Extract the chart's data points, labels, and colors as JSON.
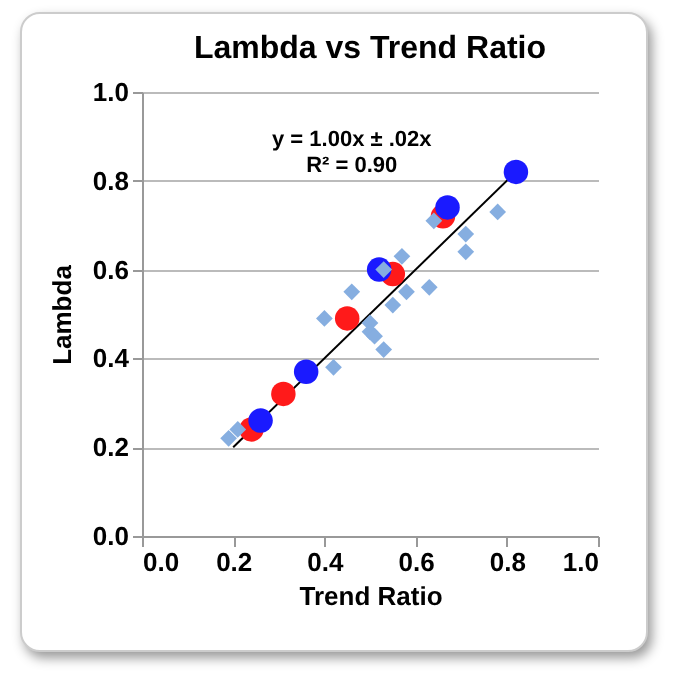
{
  "chart_data": {
    "type": "scatter",
    "title": "Lambda vs Trend Ratio",
    "xlabel": "Trend Ratio",
    "ylabel": "Lambda",
    "annotations": [
      "y = 1.00x ± .02x",
      "R² = 0.90"
    ],
    "xlim": [
      0,
      1
    ],
    "ylim": [
      0,
      1
    ],
    "xticks": [
      {
        "value": 0,
        "label": "0.0"
      },
      {
        "value": 0.2,
        "label": "0.2"
      },
      {
        "value": 0.4,
        "label": "0.4"
      },
      {
        "value": 0.6,
        "label": "0.6"
      },
      {
        "value": 0.8,
        "label": "0.8"
      },
      {
        "value": 1,
        "label": "1.0"
      }
    ],
    "yticks": [
      {
        "value": 0,
        "label": "0.0"
      },
      {
        "value": 0.2,
        "label": "0.2"
      },
      {
        "value": 0.4,
        "label": "0.4"
      },
      {
        "value": 0.6,
        "label": "0.6"
      },
      {
        "value": 0.8,
        "label": "0.8"
      },
      {
        "value": 1,
        "label": "1.0"
      }
    ],
    "grid": "y",
    "series": [
      {
        "color": "#86aee0",
        "marker": "diamond",
        "x": [
          0.19,
          0.21,
          0.4,
          0.42,
          0.46,
          0.5,
          0.5,
          0.51,
          0.53,
          0.53,
          0.57,
          0.55,
          0.58,
          0.63,
          0.64,
          0.71,
          0.71,
          0.78
        ],
        "values": [
          0.22,
          0.24,
          0.49,
          0.38,
          0.55,
          0.48,
          0.46,
          0.45,
          0.42,
          0.6,
          0.63,
          0.52,
          0.55,
          0.56,
          0.71,
          0.68,
          0.64,
          0.73
        ]
      },
      {
        "color": "#ff1a1a",
        "marker": "circle",
        "x": [
          0.24,
          0.31,
          0.45,
          0.55,
          0.66
        ],
        "values": [
          0.24,
          0.32,
          0.49,
          0.59,
          0.72
        ]
      },
      {
        "color": "#1a1aff",
        "marker": "circle",
        "x": [
          0.26,
          0.36,
          0.52,
          0.67,
          0.82
        ],
        "values": [
          0.26,
          0.37,
          0.6,
          0.74,
          0.82
        ]
      },
      {
        "type": "line",
        "color": "#000000",
        "x": [
          0.2,
          0.82
        ],
        "values": [
          0.2,
          0.82
        ]
      }
    ]
  }
}
